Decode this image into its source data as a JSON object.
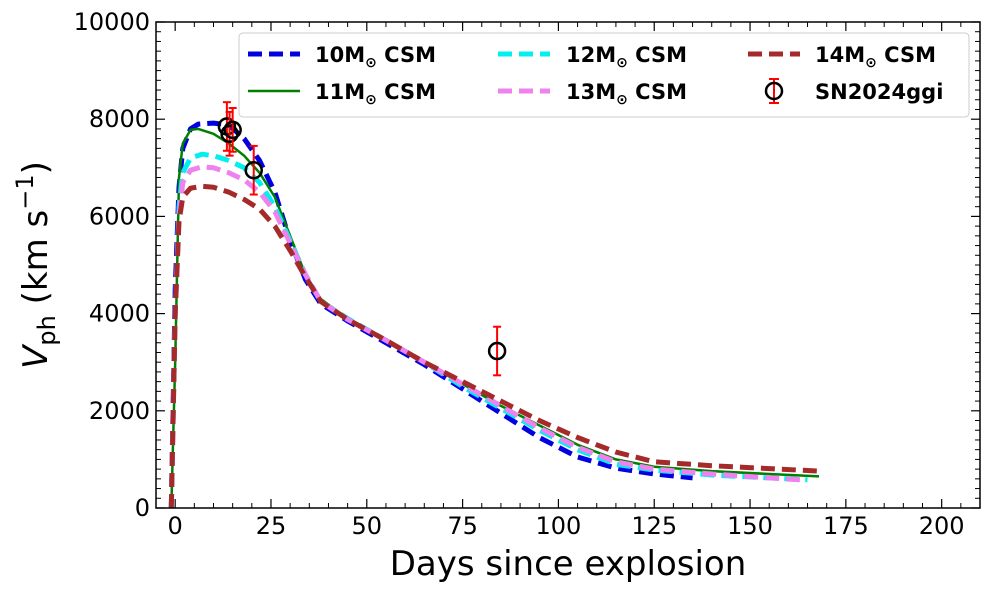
{
  "chart_data": {
    "type": "line",
    "xlabel": "Days since explosion",
    "ylabel_main": "V",
    "ylabel_sub": "ph",
    "ylabel_units": " (km s",
    "ylabel_exp": "−1",
    "ylabel_close": ")",
    "xlim": [
      -5,
      210
    ],
    "ylim": [
      0,
      10000
    ],
    "xticks": [
      0,
      25,
      50,
      75,
      100,
      125,
      150,
      175,
      200
    ],
    "yticks": [
      0,
      2000,
      4000,
      6000,
      8000,
      10000
    ],
    "legend_position": "top-right",
    "series": [
      {
        "name": "10M",
        "sym": "⊙",
        "suffix": " CSM",
        "color": "#0000e0",
        "style": "dashed",
        "points": [
          [
            -1,
            0
          ],
          [
            0,
            4500
          ],
          [
            1,
            6600
          ],
          [
            2,
            7400
          ],
          [
            4,
            7800
          ],
          [
            6,
            7900
          ],
          [
            10,
            7920
          ],
          [
            14,
            7880
          ],
          [
            18,
            7600
          ],
          [
            22,
            7150
          ],
          [
            26,
            6500
          ],
          [
            30,
            5500
          ],
          [
            34,
            4700
          ],
          [
            38,
            4200
          ],
          [
            45,
            3850
          ],
          [
            55,
            3400
          ],
          [
            65,
            2950
          ],
          [
            75,
            2450
          ],
          [
            85,
            1950
          ],
          [
            95,
            1450
          ],
          [
            105,
            1050
          ],
          [
            115,
            820
          ],
          [
            125,
            700
          ],
          [
            135,
            620
          ]
        ]
      },
      {
        "name": "11M",
        "sym": "⊙",
        "suffix": " CSM",
        "color": "#008000",
        "style": "solid",
        "points": [
          [
            -1,
            0
          ],
          [
            0,
            3000
          ],
          [
            1,
            6800
          ],
          [
            2,
            7500
          ],
          [
            4,
            7780
          ],
          [
            6,
            7800
          ],
          [
            10,
            7700
          ],
          [
            14,
            7500
          ],
          [
            18,
            7250
          ],
          [
            22,
            6900
          ],
          [
            26,
            6400
          ],
          [
            30,
            5600
          ],
          [
            34,
            4800
          ],
          [
            38,
            4300
          ],
          [
            45,
            3900
          ],
          [
            55,
            3450
          ],
          [
            65,
            3000
          ],
          [
            75,
            2550
          ],
          [
            85,
            2100
          ],
          [
            95,
            1700
          ],
          [
            105,
            1300
          ],
          [
            115,
            1000
          ],
          [
            125,
            850
          ],
          [
            140,
            760
          ],
          [
            155,
            700
          ],
          [
            168,
            650
          ]
        ]
      },
      {
        "name": "12M",
        "sym": "⊙",
        "suffix": " CSM",
        "color": "#00f0f0",
        "style": "dashed",
        "points": [
          [
            -1,
            0
          ],
          [
            0,
            4000
          ],
          [
            1,
            6200
          ],
          [
            2,
            6900
          ],
          [
            4,
            7200
          ],
          [
            7,
            7280
          ],
          [
            10,
            7250
          ],
          [
            14,
            7150
          ],
          [
            18,
            7000
          ],
          [
            22,
            6700
          ],
          [
            26,
            6200
          ],
          [
            30,
            5500
          ],
          [
            34,
            4800
          ],
          [
            38,
            4250
          ],
          [
            45,
            3900
          ],
          [
            55,
            3450
          ],
          [
            65,
            3000
          ],
          [
            75,
            2500
          ],
          [
            85,
            2050
          ],
          [
            95,
            1600
          ],
          [
            105,
            1200
          ],
          [
            115,
            900
          ],
          [
            125,
            780
          ],
          [
            140,
            680
          ],
          [
            155,
            620
          ],
          [
            165,
            580
          ]
        ]
      },
      {
        "name": "13M",
        "sym": "⊙",
        "suffix": " CSM",
        "color": "#ee82ee",
        "style": "dashed",
        "points": [
          [
            -1,
            0
          ],
          [
            0,
            4000
          ],
          [
            1,
            6000
          ],
          [
            2,
            6700
          ],
          [
            4,
            6950
          ],
          [
            7,
            7020
          ],
          [
            10,
            7000
          ],
          [
            14,
            6900
          ],
          [
            18,
            6750
          ],
          [
            22,
            6500
          ],
          [
            26,
            6100
          ],
          [
            30,
            5450
          ],
          [
            34,
            4800
          ],
          [
            38,
            4250
          ],
          [
            45,
            3880
          ],
          [
            55,
            3450
          ],
          [
            65,
            3000
          ],
          [
            75,
            2550
          ],
          [
            85,
            2100
          ],
          [
            95,
            1650
          ],
          [
            105,
            1250
          ],
          [
            115,
            950
          ],
          [
            125,
            800
          ],
          [
            140,
            700
          ],
          [
            155,
            620
          ],
          [
            163,
            580
          ]
        ]
      },
      {
        "name": "14M",
        "sym": "⊙",
        "suffix": " CSM",
        "color": "#a52a2a",
        "style": "dashed",
        "points": [
          [
            -1,
            0
          ],
          [
            0,
            4000
          ],
          [
            1,
            5900
          ],
          [
            2,
            6400
          ],
          [
            4,
            6580
          ],
          [
            7,
            6620
          ],
          [
            10,
            6600
          ],
          [
            14,
            6500
          ],
          [
            18,
            6350
          ],
          [
            22,
            6150
          ],
          [
            26,
            5800
          ],
          [
            30,
            5300
          ],
          [
            34,
            4750
          ],
          [
            38,
            4250
          ],
          [
            45,
            3880
          ],
          [
            55,
            3450
          ],
          [
            65,
            3000
          ],
          [
            75,
            2600
          ],
          [
            85,
            2200
          ],
          [
            95,
            1800
          ],
          [
            105,
            1450
          ],
          [
            115,
            1150
          ],
          [
            125,
            950
          ],
          [
            140,
            870
          ],
          [
            155,
            810
          ],
          [
            168,
            760
          ]
        ]
      }
    ],
    "observations": {
      "name": "SN2024ggi",
      "marker_color": "#000000",
      "error_color": "#ff0000",
      "points": [
        {
          "x": 13.5,
          "y": 7850,
          "err": 500
        },
        {
          "x": 14.2,
          "y": 7700,
          "err": 450
        },
        {
          "x": 15.0,
          "y": 7780,
          "err": 450
        },
        {
          "x": 20.5,
          "y": 6950,
          "err": 500
        },
        {
          "x": 84.0,
          "y": 3230,
          "err": 500
        }
      ]
    }
  }
}
